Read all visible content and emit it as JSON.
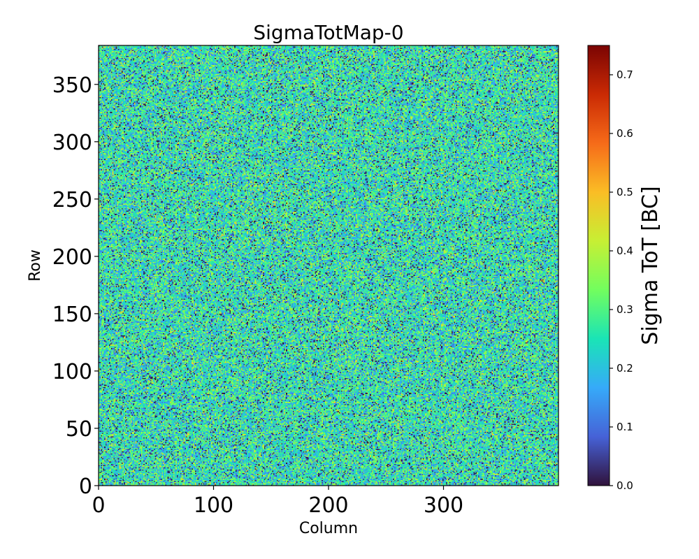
{
  "chart_data": {
    "type": "heatmap",
    "title": "SigmaTotMap-0",
    "xlabel": "Column",
    "ylabel": "Row",
    "xlim": [
      0,
      400
    ],
    "ylim": [
      0,
      384
    ],
    "x_ticks": [
      0,
      100,
      200,
      300
    ],
    "x_tick_labels": [
      "0",
      "100",
      "200",
      "300"
    ],
    "y_ticks": [
      0,
      50,
      100,
      150,
      200,
      250,
      300,
      350
    ],
    "y_tick_labels": [
      "0",
      "50",
      "100",
      "150",
      "200",
      "250",
      "300",
      "350"
    ],
    "colormap": "turbo",
    "colorbar": {
      "label": "Sigma ToT [BC]",
      "range": [
        0.0,
        0.75
      ],
      "ticks": [
        0.0,
        0.1,
        0.2,
        0.3,
        0.4,
        0.5,
        0.6,
        0.7
      ],
      "tick_labels": [
        "0.0",
        "0.1",
        "0.2",
        "0.3",
        "0.4",
        "0.5",
        "0.6",
        "0.7"
      ]
    },
    "value_distribution": {
      "description": "noise-like per-pixel values, mostly 0.15–0.35, with sparse near-zero pixels",
      "mean": 0.25,
      "spread": 0.09,
      "dark_fraction": 0.06
    },
    "colors": {
      "turbo_stops": [
        "#30123b",
        "#4662d7",
        "#36aaf9",
        "#1ae4b6",
        "#72fe5e",
        "#c7ef34",
        "#fabd25",
        "#f66b19",
        "#ca2a04",
        "#7a0403"
      ]
    }
  }
}
